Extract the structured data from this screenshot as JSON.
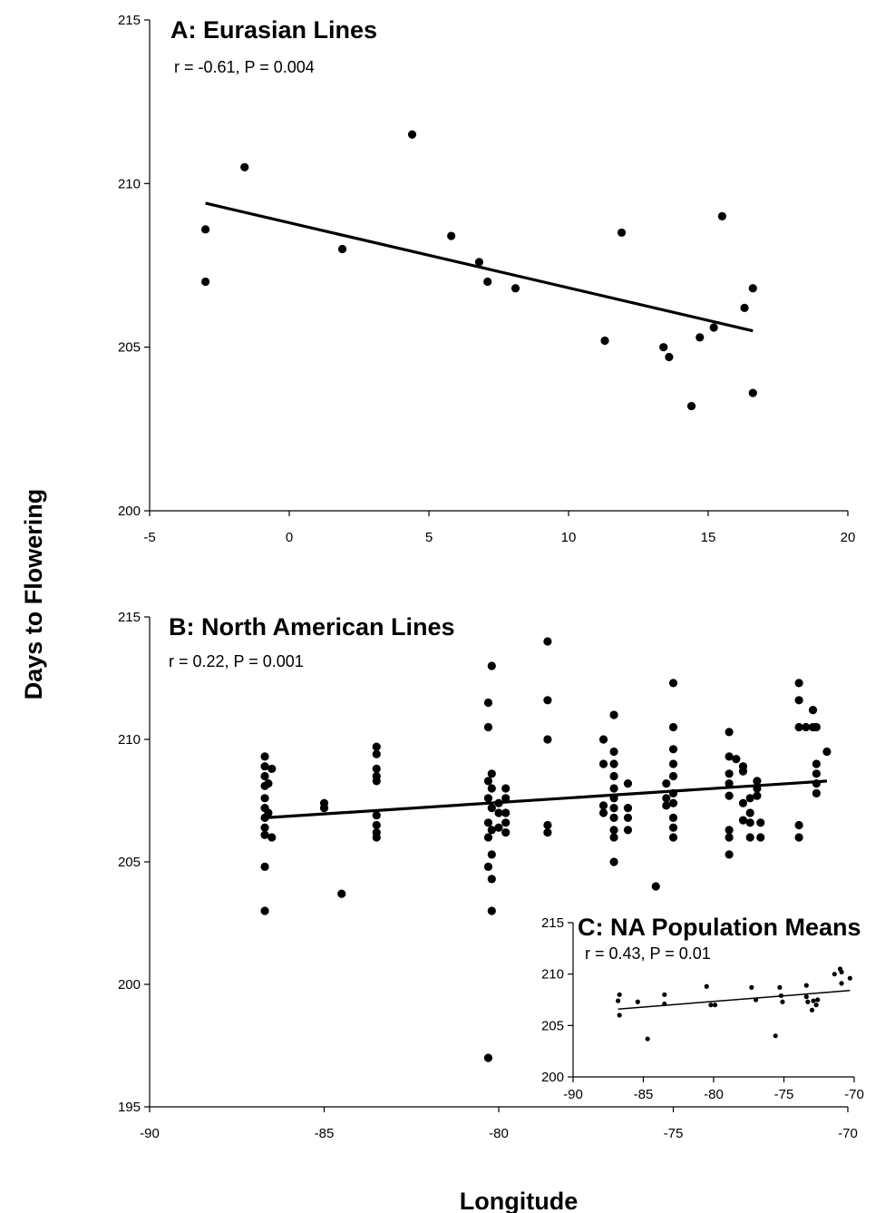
{
  "figure": {
    "ylabel": "Days to Flowering",
    "xlabel": "Longitude"
  },
  "chart_data": [
    {
      "id": "A",
      "type": "scatter",
      "title": "A: Eurasian Lines",
      "annotation": "r = -0.61, P = 0.004",
      "xlim": [
        -5,
        20
      ],
      "ylim": [
        200,
        215
      ],
      "xticks": [
        "-5",
        "0",
        "5",
        "10",
        "15",
        "20"
      ],
      "yticks": [
        "200",
        "205",
        "210",
        "215"
      ],
      "points": [
        [
          -3,
          208.6
        ],
        [
          -3,
          207
        ],
        [
          -1.6,
          210.5
        ],
        [
          1.9,
          208
        ],
        [
          4.4,
          211.5
        ],
        [
          5.8,
          208.4
        ],
        [
          6.8,
          207.6
        ],
        [
          7.1,
          207
        ],
        [
          8.1,
          206.8
        ],
        [
          11.3,
          205.2
        ],
        [
          11.9,
          208.5
        ],
        [
          13.4,
          205
        ],
        [
          13.6,
          204.7
        ],
        [
          14.4,
          203.2
        ],
        [
          14.7,
          205.3
        ],
        [
          15.2,
          205.6
        ],
        [
          15.5,
          209
        ],
        [
          16.3,
          206.2
        ],
        [
          16.6,
          206.8
        ],
        [
          16.6,
          203.6
        ]
      ],
      "trendline": [
        [
          -3,
          209.4
        ],
        [
          16.6,
          205.5
        ]
      ],
      "marker": "filled-circle",
      "grid": false
    },
    {
      "id": "B",
      "type": "scatter",
      "title": "B: North American Lines",
      "annotation": "r = 0.22, P = 0.001",
      "xlim": [
        -90,
        -70
      ],
      "ylim": [
        195,
        215
      ],
      "xticks": [
        "-90",
        "-85",
        "-80",
        "-75",
        "-70"
      ],
      "yticks": [
        "195",
        "200",
        "205",
        "210",
        "215"
      ],
      "points": [
        [
          -86.7,
          209.3
        ],
        [
          -86.7,
          208.9
        ],
        [
          -86.7,
          208.5
        ],
        [
          -86.7,
          208.1
        ],
        [
          -86.7,
          207.6
        ],
        [
          -86.7,
          207.2
        ],
        [
          -86.7,
          206.8
        ],
        [
          -86.7,
          206.4
        ],
        [
          -86.7,
          206.1
        ],
        [
          -86.6,
          208.2
        ],
        [
          -86.6,
          207.0
        ],
        [
          -86.5,
          208.8
        ],
        [
          -86.5,
          206.0
        ],
        [
          -86.7,
          204.8
        ],
        [
          -86.7,
          203.0
        ],
        [
          -85.0,
          207.4
        ],
        [
          -85.0,
          207.2
        ],
        [
          -84.5,
          203.7
        ],
        [
          -83.5,
          209.7
        ],
        [
          -83.5,
          209.4
        ],
        [
          -83.5,
          208.8
        ],
        [
          -83.5,
          208.5
        ],
        [
          -83.5,
          208.3
        ],
        [
          -83.5,
          206.9
        ],
        [
          -83.5,
          206.5
        ],
        [
          -83.5,
          206.2
        ],
        [
          -83.5,
          206.0
        ],
        [
          -80.3,
          211.5
        ],
        [
          -80.3,
          210.5
        ],
        [
          -80.2,
          213.0
        ],
        [
          -80.3,
          208.3
        ],
        [
          -80.2,
          208.6
        ],
        [
          -80.2,
          208.0
        ],
        [
          -80.3,
          207.6
        ],
        [
          -80.2,
          207.2
        ],
        [
          -80.3,
          206.6
        ],
        [
          -80.2,
          206.3
        ],
        [
          -80.3,
          206.0
        ],
        [
          -80.2,
          205.3
        ],
        [
          -80.3,
          204.8
        ],
        [
          -80.2,
          204.3
        ],
        [
          -80.2,
          203.0
        ],
        [
          -80.0,
          207.4
        ],
        [
          -80.0,
          207.0
        ],
        [
          -80.0,
          206.4
        ],
        [
          -79.8,
          208.0
        ],
        [
          -79.8,
          207.6
        ],
        [
          -79.8,
          207.0
        ],
        [
          -79.8,
          206.6
        ],
        [
          -79.8,
          206.2
        ],
        [
          -80.3,
          197.0
        ],
        [
          -78.6,
          214.0
        ],
        [
          -78.6,
          211.6
        ],
        [
          -78.6,
          210.0
        ],
        [
          -78.6,
          206.5
        ],
        [
          -78.6,
          206.2
        ],
        [
          -77.0,
          210.0
        ],
        [
          -77.0,
          209.0
        ],
        [
          -77.0,
          207.3
        ],
        [
          -77.0,
          207.0
        ],
        [
          -76.7,
          211.0
        ],
        [
          -76.7,
          209.5
        ],
        [
          -76.7,
          209.0
        ],
        [
          -76.7,
          208.5
        ],
        [
          -76.7,
          208.0
        ],
        [
          -76.7,
          207.6
        ],
        [
          -76.7,
          207.2
        ],
        [
          -76.7,
          206.8
        ],
        [
          -76.7,
          206.3
        ],
        [
          -76.7,
          206.0
        ],
        [
          -76.7,
          205.0
        ],
        [
          -76.3,
          208.2
        ],
        [
          -76.3,
          207.2
        ],
        [
          -76.3,
          206.8
        ],
        [
          -76.3,
          206.3
        ],
        [
          -75.5,
          204.0
        ],
        [
          -75.0,
          212.3
        ],
        [
          -75.0,
          210.5
        ],
        [
          -75.0,
          209.6
        ],
        [
          -75.0,
          209.0
        ],
        [
          -75.0,
          208.5
        ],
        [
          -75.0,
          207.8
        ],
        [
          -75.0,
          207.4
        ],
        [
          -75.0,
          206.8
        ],
        [
          -75.0,
          206.4
        ],
        [
          -75.0,
          206.0
        ],
        [
          -75.2,
          208.2
        ],
        [
          -75.2,
          207.6
        ],
        [
          -75.2,
          207.3
        ],
        [
          -73.4,
          210.3
        ],
        [
          -73.4,
          209.3
        ],
        [
          -73.4,
          208.6
        ],
        [
          -73.4,
          208.2
        ],
        [
          -73.4,
          207.7
        ],
        [
          -73.4,
          206.3
        ],
        [
          -73.4,
          206.0
        ],
        [
          -73.4,
          205.3
        ],
        [
          -73.2,
          209.2
        ],
        [
          -73.0,
          208.9
        ],
        [
          -73.0,
          208.7
        ],
        [
          -73.0,
          207.4
        ],
        [
          -73.0,
          206.7
        ],
        [
          -72.8,
          207.6
        ],
        [
          -72.8,
          207.0
        ],
        [
          -72.8,
          206.6
        ],
        [
          -72.8,
          206.0
        ],
        [
          -72.6,
          208.3
        ],
        [
          -72.6,
          207.7
        ],
        [
          -72.5,
          206.6
        ],
        [
          -72.5,
          206.0
        ],
        [
          -72.6,
          208.0
        ],
        [
          -71.4,
          212.3
        ],
        [
          -71.4,
          211.6
        ],
        [
          -71.4,
          210.5
        ],
        [
          -71.4,
          206.5
        ],
        [
          -71.4,
          206.0
        ],
        [
          -71.2,
          210.5
        ],
        [
          -71.0,
          211.2
        ],
        [
          -71.0,
          210.5
        ],
        [
          -70.9,
          210.5
        ],
        [
          -70.9,
          209.0
        ],
        [
          -70.9,
          208.6
        ],
        [
          -70.9,
          208.2
        ],
        [
          -70.9,
          207.8
        ],
        [
          -70.6,
          209.5
        ]
      ],
      "trendline": [
        [
          -86.7,
          206.8
        ],
        [
          -70.6,
          208.3
        ]
      ],
      "marker": "filled-circle",
      "grid": false
    },
    {
      "id": "C",
      "type": "scatter",
      "title": "C: NA Population Means",
      "annotation": "r = 0.43, P = 0.01",
      "xlim": [
        -90,
        -70
      ],
      "ylim": [
        200,
        215
      ],
      "xticks": [
        "-90",
        "-85",
        "-80",
        "-75",
        "-70"
      ],
      "yticks": [
        "200",
        "205",
        "210",
        "215"
      ],
      "points": [
        [
          -86.8,
          207.4
        ],
        [
          -86.7,
          208.0
        ],
        [
          -86.7,
          206.0
        ],
        [
          -85.4,
          207.3
        ],
        [
          -84.7,
          203.7
        ],
        [
          -83.5,
          208.0
        ],
        [
          -83.5,
          207.1
        ],
        [
          -80.5,
          208.8
        ],
        [
          -80.2,
          207.0
        ],
        [
          -79.9,
          207.0
        ],
        [
          -77.3,
          208.7
        ],
        [
          -77.0,
          207.5
        ],
        [
          -75.6,
          204.0
        ],
        [
          -75.3,
          208.7
        ],
        [
          -75.2,
          207.9
        ],
        [
          -75.1,
          207.3
        ],
        [
          -73.4,
          208.9
        ],
        [
          -73.4,
          207.8
        ],
        [
          -73.3,
          207.3
        ],
        [
          -73.0,
          206.5
        ],
        [
          -72.9,
          207.4
        ],
        [
          -72.7,
          207.0
        ],
        [
          -72.6,
          207.5
        ],
        [
          -71.4,
          210.0
        ],
        [
          -71.0,
          210.5
        ],
        [
          -70.9,
          210.2
        ],
        [
          -70.9,
          209.1
        ],
        [
          -70.3,
          209.6
        ]
      ],
      "trendline": [
        [
          -86.8,
          206.6
        ],
        [
          -70.3,
          208.4
        ]
      ],
      "marker": "small-filled-circle",
      "grid": false
    }
  ]
}
